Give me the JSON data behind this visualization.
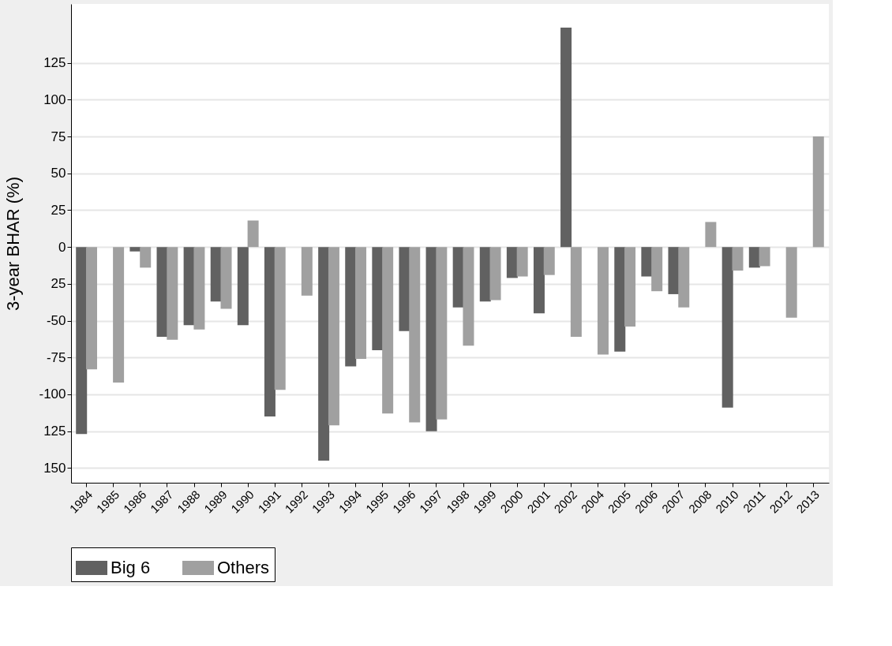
{
  "chart_data": {
    "type": "bar",
    "ylabel": "3-year BHAR (%)",
    "categories": [
      "1984",
      "1985",
      "1986",
      "1987",
      "1988",
      "1989",
      "1990",
      "1991",
      "1992",
      "1993",
      "1994",
      "1995",
      "1996",
      "1997",
      "1998",
      "1999",
      "2000",
      "2001",
      "2002",
      "2004",
      "2005",
      "2006",
      "2007",
      "2008",
      "2010",
      "2011",
      "2012",
      "2013"
    ],
    "series": [
      {
        "name": "Big 6",
        "color": "#616161",
        "values": [
          -127,
          null,
          -3,
          -61,
          -53,
          -37,
          -53,
          -115,
          null,
          -145,
          -81,
          -70,
          -57,
          -125,
          -41,
          -37,
          -21,
          -45,
          149,
          null,
          -71,
          -20,
          -32,
          null,
          -109,
          -14,
          null,
          null
        ]
      },
      {
        "name": "Others",
        "color": "#a0a0a0",
        "values": [
          -83,
          -92,
          -14,
          -63,
          -56,
          -42,
          18,
          -97,
          -33,
          -121,
          -76,
          -113,
          -119,
          -117,
          -67,
          -36,
          -20,
          -19,
          -61,
          -73,
          -54,
          -30,
          -41,
          17,
          -16,
          -13,
          -48,
          75
        ]
      }
    ],
    "ylim": [
      -160,
      165
    ],
    "yticks": [
      {
        "value": -150,
        "label": "150"
      },
      {
        "value": -125,
        "label": "125"
      },
      -100,
      -75,
      -50,
      {
        "value": -25,
        "label": "25"
      },
      0,
      25,
      50,
      75,
      100,
      125
    ],
    "grid": "y",
    "legend": "bottom"
  }
}
